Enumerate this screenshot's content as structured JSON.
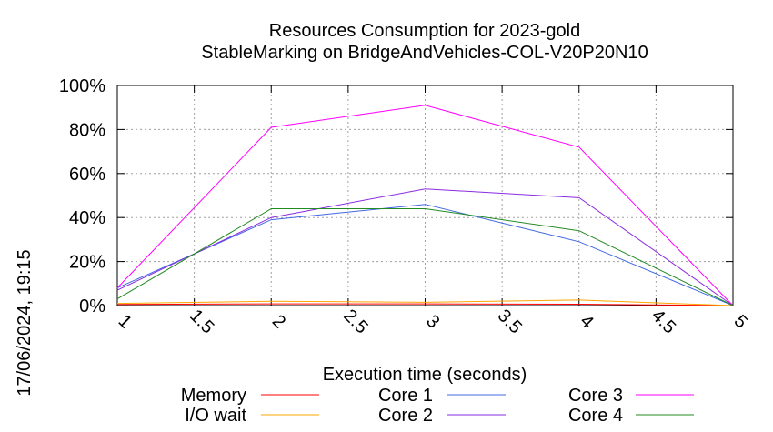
{
  "chart_data": {
    "type": "line",
    "title": "Resources Consumption for 2023-gold",
    "subtitle": "StableMarking on BridgeAndVehicles-COL-V20P20N10",
    "xlabel": "Execution time (seconds)",
    "ylabel": "",
    "timestamp": "17/06/2024, 19:15",
    "xlim": [
      1,
      5
    ],
    "ylim": [
      0,
      100
    ],
    "xticks": [
      "1",
      "1.5",
      "2",
      "2.5",
      "3",
      "3.5",
      "4",
      "4.5",
      "5"
    ],
    "yticks": [
      "0%",
      "20%",
      "40%",
      "60%",
      "80%",
      "100%"
    ],
    "grid": true,
    "legend_position": "bottom",
    "series": [
      {
        "name": "Memory",
        "color": "#ff0000",
        "x": [
          1,
          2,
          3,
          4,
          5
        ],
        "y": [
          0.5,
          0.8,
          0.8,
          0.6,
          0
        ]
      },
      {
        "name": "I/O wait",
        "color": "#ffa500",
        "x": [
          1,
          2,
          3,
          4,
          5
        ],
        "y": [
          1,
          2,
          1.5,
          2.5,
          0
        ]
      },
      {
        "name": "Core 1",
        "color": "#4169e1",
        "x": [
          1,
          2,
          3,
          4,
          5
        ],
        "y": [
          8,
          39,
          46,
          29,
          0
        ]
      },
      {
        "name": "Core 2",
        "color": "#8a2be2",
        "x": [
          1,
          2,
          3,
          4,
          5
        ],
        "y": [
          7,
          40,
          53,
          49,
          0
        ]
      },
      {
        "name": "Core 3",
        "color": "#ff00ff",
        "x": [
          1,
          2,
          3,
          4,
          5
        ],
        "y": [
          8,
          81,
          91,
          72,
          0
        ]
      },
      {
        "name": "Core 4",
        "color": "#228b22",
        "x": [
          1,
          2,
          3,
          4,
          5
        ],
        "y": [
          3,
          44,
          44,
          34,
          0
        ]
      }
    ]
  }
}
